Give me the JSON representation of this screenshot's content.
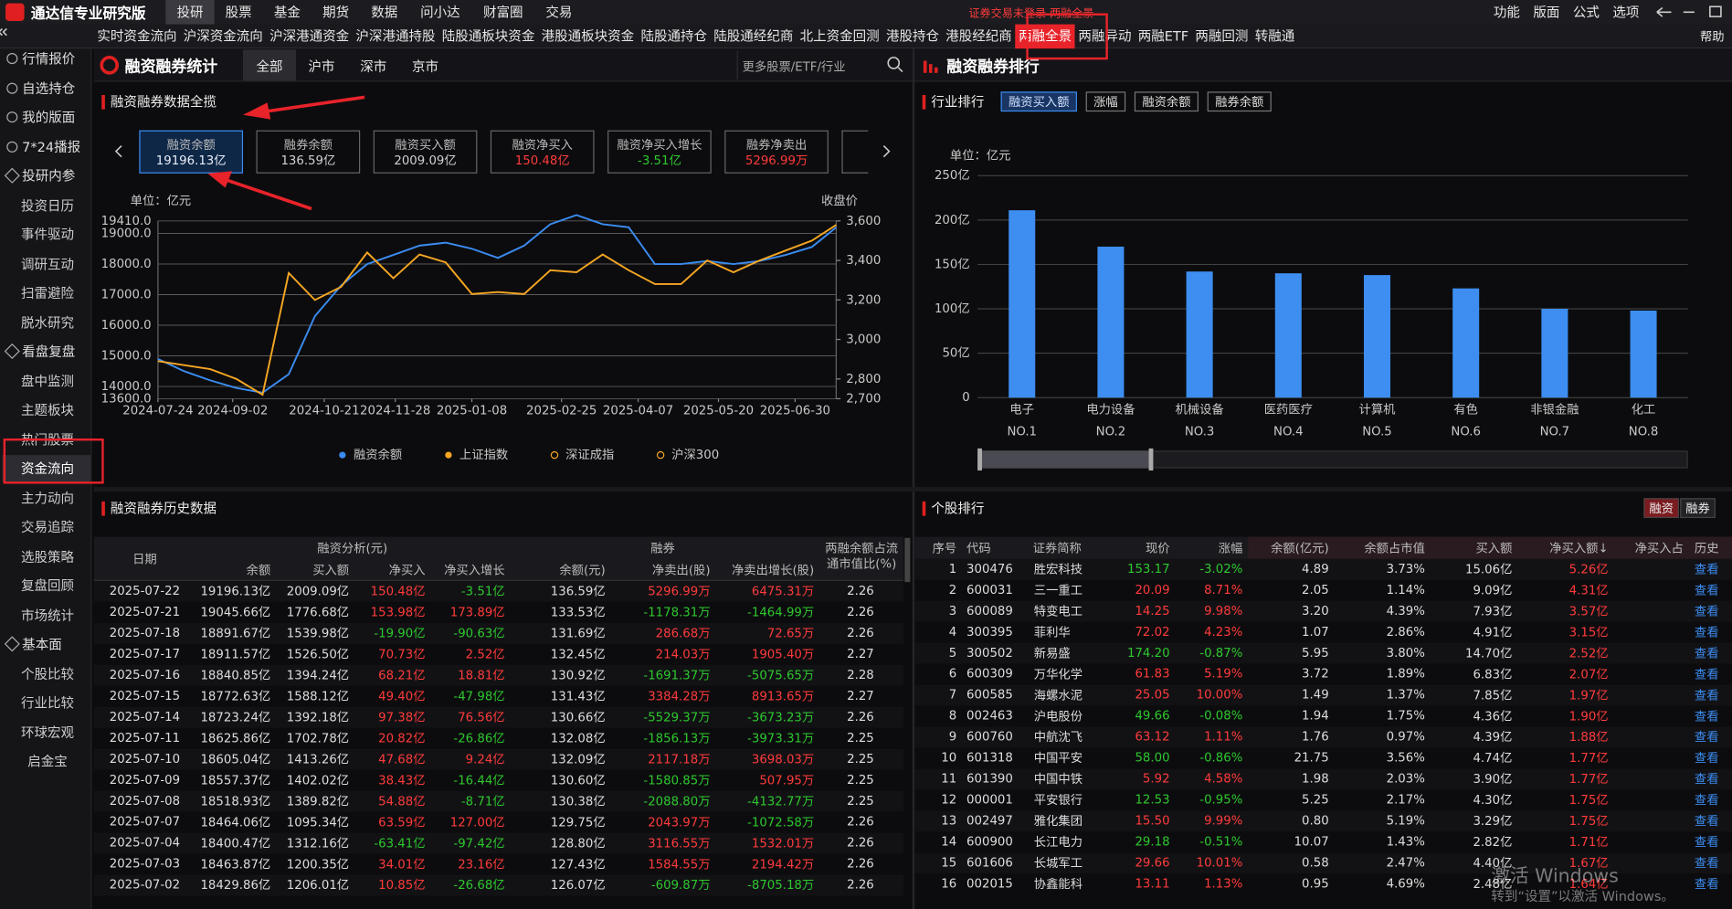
{
  "app_title": "通达信专业研究版",
  "top_menu": [
    "投研",
    "股票",
    "基金",
    "期货",
    "数据",
    "问小达",
    "财富圈",
    "交易"
  ],
  "top_menu_active": 0,
  "notice": "证券交易未登录  两融全景",
  "top_right": [
    "功能",
    "版面",
    "公式",
    "选项"
  ],
  "tabs": [
    "实时资金流向",
    "沪深资金流向",
    "沪深港通资金",
    "沪深港通持股",
    "陆股通板块资金",
    "港股通板块资金",
    "陆股通持仓",
    "陆股通经纪商",
    "北上资金回测",
    "港股持仓",
    "港股经纪商",
    "两融全景",
    "两融异动",
    "两融ETF",
    "两融回测",
    "转融通"
  ],
  "tabs_active": 11,
  "help": "帮助",
  "sidebar": {
    "top": [
      "行情报价",
      "自选持仓",
      "我的版面",
      "7*24播报"
    ],
    "groups": [
      {
        "label": "投研内参",
        "items": [
          "投资日历",
          "事件驱动",
          "调研互动",
          "扫雷避险",
          "脱水研究"
        ]
      },
      {
        "label": "看盘复盘",
        "items": [
          "盘中监测",
          "主题板块",
          "热门股票",
          "资金流向",
          "主力动向",
          "交易追踪",
          "选股策略",
          "复盘回顾",
          "市场统计"
        ]
      },
      {
        "label": "基本面",
        "items": [
          "个股比较",
          "行业比较",
          "环球宏观",
          "启金宝"
        ]
      }
    ],
    "active_group": 1,
    "active_item": 3
  },
  "stats_panel": {
    "title": "融资融券统计",
    "filters": [
      "全部",
      "沪市",
      "深市",
      "京市"
    ],
    "active_filter": 0,
    "search_placeholder": "更多股票/ETF/行业",
    "overview_title": "融资融券数据全揽",
    "active_card": 0,
    "cards": [
      {
        "label": "融资余额",
        "value": "19196.13亿",
        "color": "#e8eef8"
      },
      {
        "label": "融券余额",
        "value": "136.59亿",
        "color": "#d0d0d0"
      },
      {
        "label": "融资买入额",
        "value": "2009.09亿",
        "color": "#d0d0d0"
      },
      {
        "label": "融资净买入",
        "value": "150.48亿",
        "color": "#ff3b3b"
      },
      {
        "label": "融资净买入增长",
        "value": "-3.51亿",
        "color": "#2ec82e"
      },
      {
        "label": "融券净卖出",
        "value": "5296.99万",
        "color": "#ff3b3b"
      }
    ]
  },
  "ranking_panel": {
    "title": "融资融券排行",
    "section_title": "行业排行",
    "buttons": [
      "融资买入额",
      "涨幅",
      "融资余额",
      "融券余额"
    ],
    "active_button": 0
  },
  "chart_data": [
    {
      "type": "line",
      "unit_label": "单位：亿元",
      "y2_label": "收盘价",
      "x": [
        "2024-07-24",
        "2024-08-07",
        "2024-08-21",
        "2024-09-04",
        "2024-09-18",
        "2024-10-02",
        "2024-10-16",
        "2024-10-30",
        "2024-11-13",
        "2024-11-27",
        "2024-12-11",
        "2024-12-25",
        "2025-01-08",
        "2025-01-22",
        "2025-02-05",
        "2025-02-19",
        "2025-03-05",
        "2025-03-19",
        "2025-04-02",
        "2025-04-16",
        "2025-04-30",
        "2025-05-14",
        "2025-05-28",
        "2025-06-11",
        "2025-06-25",
        "2025-07-09",
        "2025-07-22"
      ],
      "xlim": [
        "2024-07-24",
        "2025-07-22"
      ],
      "xticks": [
        "2024-07-24",
        "2024-09-02",
        "2024-10-21",
        "2024-11-28",
        "2025-01-08",
        "2025-02-25",
        "2025-04-07",
        "2025-05-20",
        "2025-06-30"
      ],
      "ylim": [
        13600,
        19410
      ],
      "yticks": [
        {
          "value": 13600,
          "label": "13600.0"
        },
        {
          "value": 14000,
          "label": "14000.0"
        },
        {
          "value": 15000,
          "label": "15000.0"
        },
        {
          "value": 16000,
          "label": "16000.0"
        },
        {
          "value": 17000,
          "label": "17000.0"
        },
        {
          "value": 18000,
          "label": "18000.0"
        },
        {
          "value": 19000,
          "label": "19000.0"
        },
        {
          "value": 19410,
          "label": "19410.0"
        }
      ],
      "y2lim": [
        2700,
        3600
      ],
      "y2ticks": [
        {
          "value": 2700,
          "label": "2,700"
        },
        {
          "value": 2800,
          "label": "2,800"
        },
        {
          "value": 3000,
          "label": "3,000"
        },
        {
          "value": 3200,
          "label": "3,200"
        },
        {
          "value": 3400,
          "label": "3,400"
        },
        {
          "value": 3600,
          "label": "3,600"
        }
      ],
      "grid": true,
      "series": [
        {
          "name": "融资余额",
          "color": "#3b8cf0",
          "values": [
            14900,
            14500,
            14200,
            13950,
            13800,
            14400,
            16300,
            17300,
            18000,
            18300,
            18600,
            18700,
            18500,
            18200,
            18600,
            19300,
            19600,
            19300,
            19200,
            18000,
            18000,
            18100,
            18000,
            18100,
            18300,
            18557,
            19196.13
          ]
        },
        {
          "name": "上证指数",
          "color": "#f5a623",
          "axis": "y2",
          "values": [
            2890,
            2870,
            2850,
            2800,
            2720,
            3336,
            3200,
            3266,
            3440,
            3310,
            3430,
            3390,
            3230,
            3240,
            3230,
            3350,
            3340,
            3430,
            3350,
            3280,
            3280,
            3400,
            3340,
            3400,
            3450,
            3500,
            3580
          ]
        }
      ],
      "inactive_legend": [
        {
          "name": "深证成指",
          "color": "#f5a623"
        },
        {
          "name": "沪深300",
          "color": "#f5a623"
        }
      ]
    },
    {
      "type": "bar",
      "unit_label": "单位：亿元",
      "categories": [
        "电子",
        "电力设备",
        "机械设备",
        "医药医疗",
        "计算机",
        "有色",
        "非银金融",
        "化工"
      ],
      "rank_labels": [
        "NO.1",
        "NO.2",
        "NO.3",
        "NO.4",
        "NO.5",
        "NO.6",
        "NO.7",
        "NO.8"
      ],
      "values": [
        211,
        170,
        142,
        140,
        138,
        123,
        100,
        98
      ],
      "color": "#3d8ef0",
      "ylim": [
        0,
        250
      ],
      "yticks": [
        0,
        {
          "value": 50,
          "label": "50亿"
        },
        {
          "value": 100,
          "label": "100亿"
        },
        {
          "value": 150,
          "label": "150亿"
        },
        {
          "value": 200,
          "label": "200亿"
        },
        {
          "value": 250,
          "label": "250亿"
        }
      ],
      "grid": true
    }
  ],
  "history": {
    "title": "融资融券历史数据",
    "date_header": "日期",
    "financing_header": "融资分析(元)",
    "short_header": "融券",
    "ratio_header": "两融余额占流通市值比(%)",
    "columns": [
      "余额",
      "买入额",
      "净买入",
      "净买入增长",
      "余额(元)",
      "净卖出(股)",
      "净卖出增长(股)"
    ],
    "rows": [
      [
        "2025-07-22",
        "19196.13亿",
        "2009.09亿",
        "150.48亿",
        "-3.51亿",
        "136.59亿",
        "5296.99万",
        "6475.31万",
        "2.26"
      ],
      [
        "2025-07-21",
        "19045.66亿",
        "1776.68亿",
        "153.98亿",
        "173.89亿",
        "133.53亿",
        "-1178.31万",
        "-1464.99万",
        "2.26"
      ],
      [
        "2025-07-18",
        "18891.67亿",
        "1539.98亿",
        "-19.90亿",
        "-90.63亿",
        "131.69亿",
        "286.68万",
        "72.65万",
        "2.26"
      ],
      [
        "2025-07-17",
        "18911.57亿",
        "1526.50亿",
        "70.73亿",
        "2.52亿",
        "132.45亿",
        "214.03万",
        "1905.40万",
        "2.27"
      ],
      [
        "2025-07-16",
        "18840.85亿",
        "1394.24亿",
        "68.21亿",
        "18.81亿",
        "130.92亿",
        "-1691.37万",
        "-5075.65万",
        "2.28"
      ],
      [
        "2025-07-15",
        "18772.63亿",
        "1588.12亿",
        "49.40亿",
        "-47.98亿",
        "131.43亿",
        "3384.28万",
        "8913.65万",
        "2.27"
      ],
      [
        "2025-07-14",
        "18723.24亿",
        "1392.18亿",
        "97.38亿",
        "76.56亿",
        "130.66亿",
        "-5529.37万",
        "-3673.23万",
        "2.26"
      ],
      [
        "2025-07-11",
        "18625.86亿",
        "1702.78亿",
        "20.82亿",
        "-26.86亿",
        "132.08亿",
        "-1856.13万",
        "-3973.31万",
        "2.25"
      ],
      [
        "2025-07-10",
        "18605.04亿",
        "1413.26亿",
        "47.68亿",
        "9.24亿",
        "132.09亿",
        "2117.18万",
        "3698.03万",
        "2.25"
      ],
      [
        "2025-07-09",
        "18557.37亿",
        "1402.02亿",
        "38.43亿",
        "-16.44亿",
        "130.60亿",
        "-1580.85万",
        "507.95万",
        "2.25"
      ],
      [
        "2025-07-08",
        "18518.93亿",
        "1389.82亿",
        "54.88亿",
        "-8.71亿",
        "130.38亿",
        "-2088.80万",
        "-4132.77万",
        "2.25"
      ],
      [
        "2025-07-07",
        "18464.06亿",
        "1095.34亿",
        "63.59亿",
        "127.00亿",
        "129.75亿",
        "2043.97万",
        "-1072.58万",
        "2.26"
      ],
      [
        "2025-07-04",
        "18400.47亿",
        "1312.16亿",
        "-63.41亿",
        "-97.42亿",
        "128.80亿",
        "3116.55万",
        "1532.01万",
        "2.26"
      ],
      [
        "2025-07-03",
        "18463.87亿",
        "1200.35亿",
        "34.01亿",
        "23.16亿",
        "127.43亿",
        "1584.55万",
        "2194.42万",
        "2.26"
      ],
      [
        "2025-07-02",
        "18429.86亿",
        "1206.01亿",
        "10.85亿",
        "-26.68亿",
        "126.07亿",
        "-609.87万",
        "-8705.18万",
        "2.26"
      ]
    ]
  },
  "stock_rank": {
    "title": "个股排行",
    "toggles": [
      "融资",
      "融券"
    ],
    "active_toggle": 0,
    "columns": [
      "序号",
      "代码",
      "证券简称",
      "现价",
      "涨幅",
      "余额(亿元)",
      "余额占市值",
      "买入额",
      "净买入额↓",
      "净买入占",
      "历史"
    ],
    "link_text": "查看",
    "rows": [
      [
        1,
        "300476",
        "胜宏科技",
        "153.17",
        "-3.02%",
        "4.89",
        "3.73%",
        "15.06亿",
        "5.26亿"
      ],
      [
        2,
        "600031",
        "三一重工",
        "20.09",
        "8.71%",
        "2.05",
        "1.14%",
        "9.09亿",
        "4.31亿"
      ],
      [
        3,
        "600089",
        "特变电工",
        "14.25",
        "9.98%",
        "3.20",
        "4.39%",
        "7.93亿",
        "3.57亿"
      ],
      [
        4,
        "300395",
        "菲利华",
        "72.02",
        "4.23%",
        "1.07",
        "2.86%",
        "4.91亿",
        "3.15亿"
      ],
      [
        5,
        "300502",
        "新易盛",
        "174.20",
        "-0.87%",
        "5.95",
        "3.80%",
        "14.70亿",
        "2.52亿"
      ],
      [
        6,
        "600309",
        "万华化学",
        "61.83",
        "5.19%",
        "3.72",
        "1.89%",
        "6.83亿",
        "2.07亿"
      ],
      [
        7,
        "600585",
        "海螺水泥",
        "25.05",
        "10.00%",
        "1.49",
        "1.37%",
        "7.85亿",
        "1.97亿"
      ],
      [
        8,
        "002463",
        "沪电股份",
        "49.66",
        "-0.08%",
        "1.94",
        "1.75%",
        "4.36亿",
        "1.90亿"
      ],
      [
        9,
        "600760",
        "中航沈飞",
        "63.12",
        "1.11%",
        "1.76",
        "0.97%",
        "4.39亿",
        "1.88亿"
      ],
      [
        10,
        "601318",
        "中国平安",
        "58.00",
        "-0.86%",
        "21.75",
        "3.56%",
        "4.74亿",
        "1.77亿"
      ],
      [
        11,
        "601390",
        "中国中铁",
        "5.92",
        "4.58%",
        "1.98",
        "2.03%",
        "3.90亿",
        "1.77亿"
      ],
      [
        12,
        "000001",
        "平安银行",
        "12.53",
        "-0.95%",
        "5.25",
        "2.17%",
        "4.30亿",
        "1.75亿"
      ],
      [
        13,
        "002497",
        "雅化集团",
        "15.50",
        "9.99%",
        "0.80",
        "5.19%",
        "3.29亿",
        "1.75亿"
      ],
      [
        14,
        "600900",
        "长江电力",
        "29.18",
        "-0.51%",
        "10.07",
        "1.43%",
        "2.82亿",
        "1.71亿"
      ],
      [
        15,
        "601606",
        "长城军工",
        "29.66",
        "10.01%",
        "0.58",
        "2.47%",
        "4.40亿",
        "1.67亿"
      ],
      [
        16,
        "002015",
        "协鑫能科",
        "13.11",
        "1.13%",
        "0.95",
        "4.69%",
        "2.48亿",
        "1.64亿"
      ]
    ]
  },
  "watermark": {
    "line1": "激活 Windows",
    "line2": "转到“设置”以激活 Windows。"
  }
}
